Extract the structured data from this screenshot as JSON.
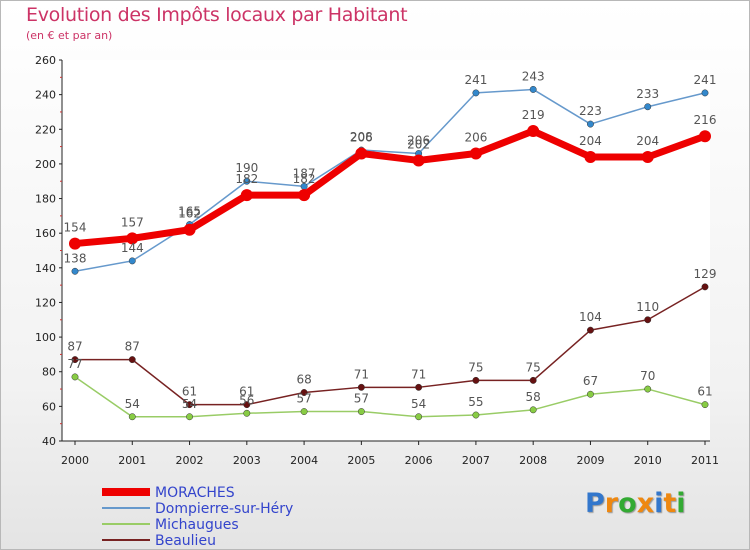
{
  "chart_data": {
    "type": "line",
    "title": "Evolution des Impôts locaux par Habitant",
    "subtitle": "(en € et par an)",
    "xlabel": "",
    "ylabel": "",
    "x": [
      "2000",
      "2001",
      "2002",
      "2003",
      "2004",
      "2005",
      "2006",
      "2007",
      "2008",
      "2009",
      "2010",
      "2011"
    ],
    "ylim": [
      40,
      260
    ],
    "yticks": [
      40,
      60,
      80,
      100,
      120,
      140,
      160,
      180,
      200,
      220,
      240,
      260
    ],
    "grid": false,
    "legend_position": "bottom-left",
    "series": [
      {
        "name": "MORACHES",
        "color": "#ee0000",
        "values": [
          154,
          157,
          162,
          182,
          182,
          206,
          202,
          206,
          219,
          204,
          204,
          216
        ]
      },
      {
        "name": "Dompierre-sur-Héry",
        "color": "#6699cc",
        "values": [
          138,
          144,
          165,
          190,
          187,
          208,
          206,
          241,
          243,
          223,
          233,
          241
        ]
      },
      {
        "name": "Michaugues",
        "color": "#99cc66",
        "values": [
          77,
          54,
          54,
          56,
          57,
          57,
          54,
          55,
          58,
          67,
          70,
          61
        ]
      },
      {
        "name": "Beaulieu",
        "color": "#772222",
        "values": [
          87,
          87,
          61,
          61,
          68,
          71,
          71,
          75,
          75,
          104,
          110,
          129
        ]
      }
    ]
  },
  "logo": {
    "letters": [
      "P",
      "r",
      "o",
      "x",
      "i",
      "t",
      "i"
    ],
    "colors": [
      "#3377cc",
      "#ee8811",
      "#33aa33",
      "#ee8811",
      "#3377cc",
      "#ee8811",
      "#33aa33"
    ]
  }
}
